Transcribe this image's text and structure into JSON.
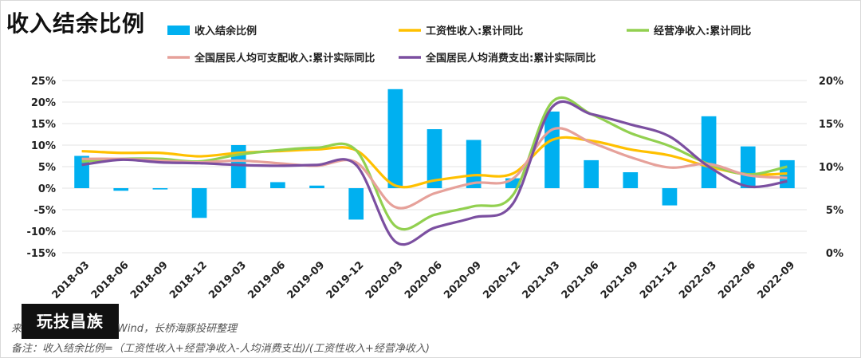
{
  "title": "收入结余比例",
  "source_prefix": "来",
  "source": "Wind，长桥海豚投研整理",
  "note": "备注：收入结余比例=（工资性收入+经营净收入-人均消费支出)/(工资性收入+经营净收入)",
  "watermark": "玩技昌族",
  "colors": {
    "bar": "#00B0F0",
    "wage": "#FFC000",
    "business": "#92D050",
    "disposable": "#E6A19A",
    "consumption": "#7B4FA0"
  },
  "chart_data": {
    "type": "bar+line",
    "categories": [
      "2018-03",
      "2018-06",
      "2018-09",
      "2018-12",
      "2019-03",
      "2019-06",
      "2019-09",
      "2019-12",
      "2020-03",
      "2020-06",
      "2020-09",
      "2020-12",
      "2021-03",
      "2021-06",
      "2021-09",
      "2021-12",
      "2022-03",
      "2022-06",
      "2022-09"
    ],
    "left_axis": {
      "ylim": [
        -15,
        25
      ],
      "ticks": [
        "-15%",
        "-10%",
        "-5%",
        "0%",
        "5%",
        "10%",
        "15%",
        "20%",
        "25%"
      ]
    },
    "right_axis": {
      "ylim": [
        0,
        20
      ],
      "ticks": [
        "0%",
        "5%",
        "10%",
        "15%",
        "20%"
      ]
    },
    "bar_series": {
      "name": "收入结余比例",
      "axis": "left",
      "values": [
        7.5,
        -0.6,
        -0.3,
        -6.9,
        10.0,
        1.4,
        0.6,
        -7.3,
        23.0,
        13.7,
        11.2,
        2.3,
        17.8,
        6.5,
        3.7,
        -4.0,
        16.7,
        9.7,
        6.5
      ]
    },
    "line_series": [
      {
        "name": "工资性收入:累计同比",
        "axis": "right",
        "color_key": "wage",
        "values": [
          11.8,
          11.6,
          11.6,
          11.2,
          11.6,
          11.8,
          12.0,
          11.9,
          7.8,
          8.4,
          9.0,
          9.2,
          13.1,
          13.0,
          12.0,
          11.3,
          10.0,
          9.1,
          9.2
        ]
      },
      {
        "name": "经营净收入:累计同比",
        "axis": "right",
        "color_key": "business",
        "values": [
          10.6,
          10.9,
          10.9,
          10.6,
          11.4,
          11.9,
          12.2,
          11.9,
          3.1,
          4.4,
          5.4,
          6.7,
          17.5,
          16.1,
          13.9,
          12.4,
          10.3,
          9.1,
          10.0
        ]
      },
      {
        "name": "全国居民人均可支配收入:累计实际同比",
        "axis": "right",
        "color_key": "disposable",
        "values": [
          10.9,
          10.9,
          10.7,
          10.5,
          10.7,
          10.4,
          10.1,
          10.5,
          5.3,
          6.9,
          8.1,
          8.6,
          14.3,
          12.8,
          11.1,
          9.9,
          10.3,
          9.0,
          8.7
        ]
      },
      {
        "name": "全国居民人均消费支出:累计实际同比",
        "axis": "right",
        "color_key": "consumption",
        "values": [
          10.2,
          10.8,
          10.5,
          10.4,
          10.2,
          10.1,
          10.2,
          10.2,
          1.3,
          2.9,
          4.1,
          5.7,
          16.9,
          16.1,
          14.9,
          13.5,
          10.0,
          7.7,
          8.3
        ]
      }
    ]
  }
}
